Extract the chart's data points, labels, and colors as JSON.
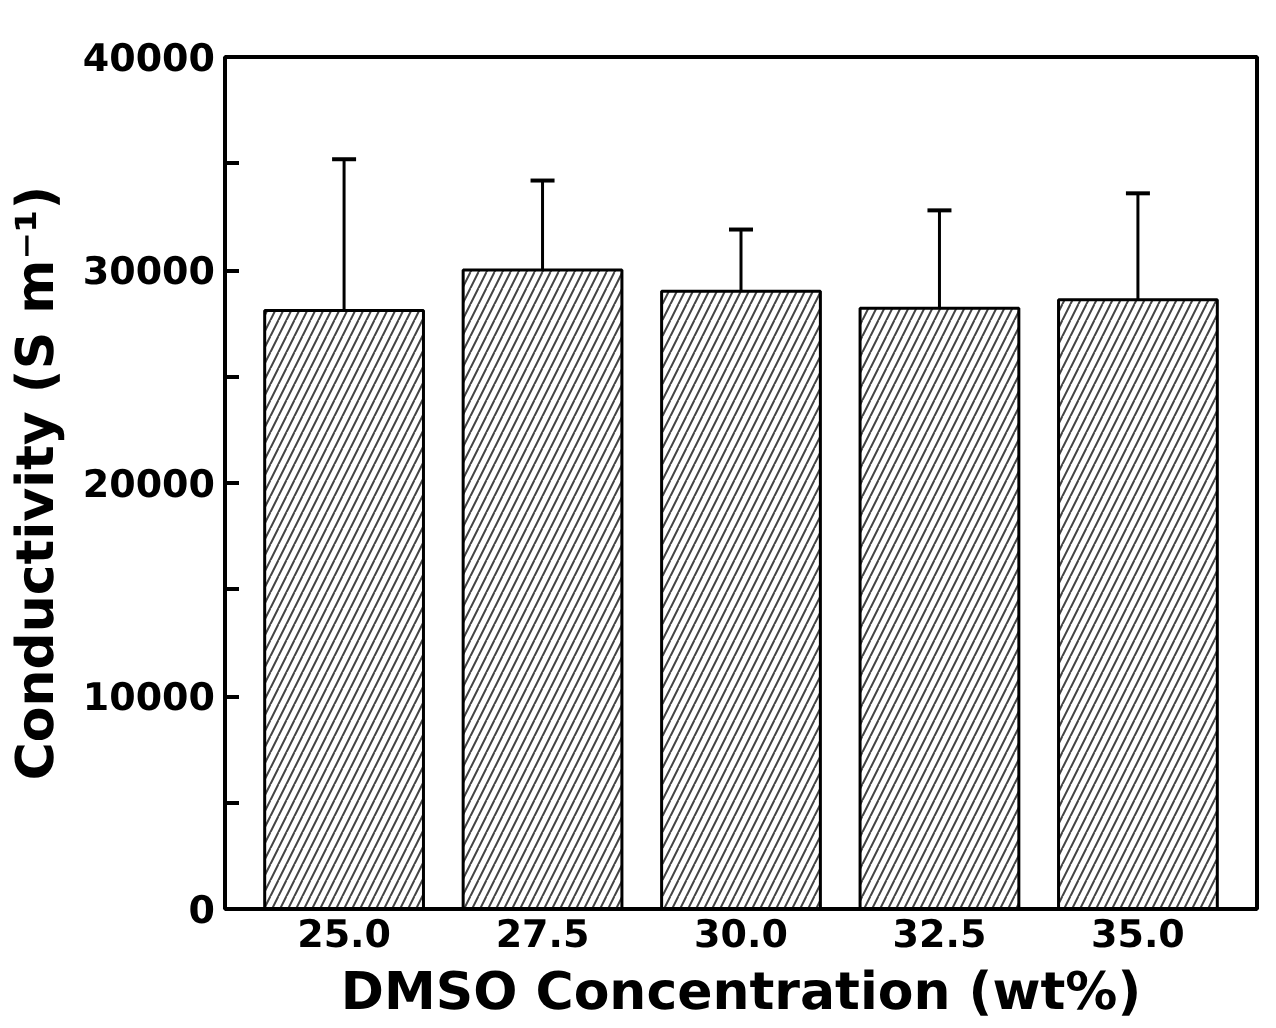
{
  "chart_data": {
    "type": "bar",
    "xlabel": "DMSO Concentration (wt%)",
    "ylabel": "Conductivity (S m⁻¹)",
    "categories": [
      "25.0",
      "27.5",
      "30.0",
      "32.5",
      "35.0"
    ],
    "series": [
      {
        "color": "#ffffff",
        "values": [
          28100,
          30000,
          29000,
          28200,
          28600
        ],
        "errors": [
          [
            21100,
            35200
          ],
          [
            25800,
            34200
          ],
          [
            26100,
            31900
          ],
          [
            23700,
            32800
          ],
          [
            23700,
            33600
          ]
        ]
      }
    ],
    "ylim": [
      0,
      40000
    ],
    "yticks": [
      0,
      {
        "value": 5000,
        "label": null
      },
      10000,
      {
        "value": 15000,
        "label": null
      },
      20000,
      {
        "value": 25000,
        "label": null
      },
      30000,
      {
        "value": 35000,
        "label": null
      },
      40000
    ],
    "grid": false
  }
}
